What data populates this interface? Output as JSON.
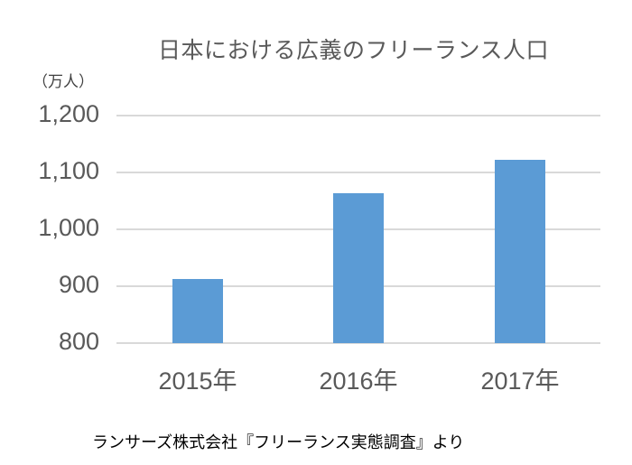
{
  "chart_data": {
    "type": "bar",
    "title": "日本における広義のフリーランス人口",
    "ylabel": "（万人）",
    "xlabel": "",
    "categories": [
      "2015年",
      "2016年",
      "2017年"
    ],
    "values": [
      913,
      1064,
      1122
    ],
    "ylim": [
      800,
      1200
    ],
    "yticks": [
      "800",
      "900",
      "1,000",
      "1,100",
      "1,200"
    ],
    "grid": true,
    "legend": "none",
    "bar_color": "#5b9bd5",
    "source": "ランサーズ株式会社『フリーランス実態調査』より"
  }
}
